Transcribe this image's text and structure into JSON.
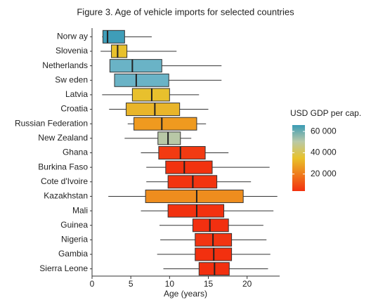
{
  "chart_data": {
    "type": "boxplot",
    "title": "Figure 3. Age of vehicle imports for selected countries",
    "x_label": "Age (years)",
    "categories": [
      "Norw ay",
      "Slovenia",
      "Netherlands",
      "Sw eden",
      "Latvia",
      "Croatia",
      "Russian Federation",
      "New Zealand",
      "Ghana",
      "Burkina Faso",
      "Cote d'Ivoire",
      "Kazakhstan",
      "Mali",
      "Guinea",
      "Nigeria",
      "Gambia",
      "Sierra Leone"
    ],
    "whisker_low": [
      1.3,
      1.1,
      2.3,
      2.9,
      1.3,
      2.2,
      4.6,
      4.2,
      6.3,
      7.0,
      7.0,
      2.1,
      6.3,
      8.7,
      8.8,
      8.4,
      9.2
    ],
    "q1": [
      1.4,
      2.5,
      2.3,
      2.9,
      5.2,
      4.4,
      5.4,
      8.5,
      8.6,
      9.5,
      9.8,
      6.9,
      9.8,
      13.0,
      13.3,
      13.3,
      13.8
    ],
    "median": [
      2.0,
      3.3,
      5.2,
      5.7,
      7.7,
      8.1,
      9.0,
      9.8,
      11.4,
      11.9,
      13.0,
      13.5,
      13.5,
      15.2,
      15.6,
      15.7,
      15.8
    ],
    "q3": [
      4.2,
      4.5,
      9.0,
      9.9,
      10.0,
      11.3,
      13.5,
      11.4,
      14.6,
      15.5,
      16.1,
      19.5,
      17.0,
      17.6,
      18.0,
      18.0,
      17.7
    ],
    "whisker_high": [
      7.7,
      10.9,
      16.7,
      16.7,
      13.8,
      15.0,
      14.7,
      12.8,
      17.6,
      22.9,
      20.5,
      23.9,
      23.4,
      22.1,
      22.5,
      23.0,
      22.7
    ],
    "colors": [
      "#3f9db8",
      "#e8c12d",
      "#6ab3c6",
      "#6ab3c6",
      "#e8c02d",
      "#e9b52a",
      "#ef9a1f",
      "#b8c8a6",
      "#f23a12",
      "#f2320f",
      "#f2340f",
      "#ee8d1e",
      "#f2310f",
      "#f23010",
      "#f23512",
      "#f2300f",
      "#f2300f"
    ],
    "xlim": [
      0,
      24.2
    ],
    "xticks": [
      0,
      5,
      10,
      15,
      20
    ],
    "legend": {
      "title": "USD GDP per cap.",
      "lim": [
        4000,
        66000
      ],
      "ticks": [
        {
          "value": 20000,
          "label": "20 000"
        },
        {
          "value": 40000,
          "label": "40 000"
        },
        {
          "value": 60000,
          "label": "60 000"
        }
      ],
      "colors": [
        "#f2300f",
        "#ef7a1c",
        "#e8c22a",
        "#b9c9a8",
        "#3a9bb5"
      ]
    }
  }
}
